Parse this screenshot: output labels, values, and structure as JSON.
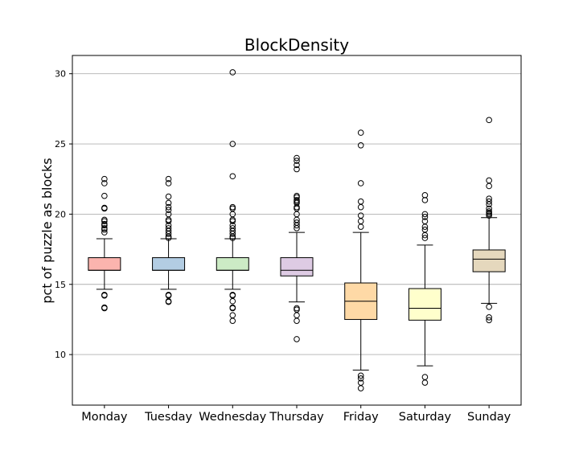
{
  "chart_data": {
    "type": "boxplot",
    "title": "BlockDensity",
    "xlabel": "",
    "ylabel": "pct of puzzle as blocks",
    "ylim": [
      6.4,
      31.3
    ],
    "yticks": [
      10,
      15,
      20,
      25,
      30
    ],
    "grid": "horizontal",
    "categories": [
      "Monday",
      "Tuesday",
      "Wednesday",
      "Thursday",
      "Friday",
      "Saturday",
      "Sunday"
    ],
    "boxes": [
      {
        "category": "Monday",
        "color": "#fbb4ae",
        "whislo": 14.65,
        "q1": 16.0,
        "median": 16.0,
        "q3": 16.9,
        "whishi": 18.25,
        "fliers": [
          13.3,
          13.35,
          14.2,
          14.25,
          18.7,
          18.9,
          19.0,
          19.2,
          19.3,
          19.5,
          19.6,
          20.4,
          20.45,
          21.3,
          22.2,
          22.5
        ]
      },
      {
        "category": "Tuesday",
        "color": "#b3cde3",
        "whislo": 14.65,
        "q1": 16.0,
        "median": 16.0,
        "q3": 16.9,
        "whishi": 18.25,
        "fliers": [
          13.75,
          13.8,
          14.2,
          14.25,
          18.3,
          18.4,
          18.6,
          18.8,
          19.0,
          19.2,
          19.5,
          19.6,
          20.0,
          20.3,
          20.5,
          20.8,
          21.25,
          22.2,
          22.5
        ]
      },
      {
        "category": "Wednesday",
        "color": "#ccebc5",
        "whislo": 14.65,
        "q1": 16.0,
        "median": 16.0,
        "q3": 16.9,
        "whishi": 18.25,
        "fliers": [
          12.4,
          12.8,
          13.3,
          13.35,
          13.8,
          14.2,
          14.25,
          18.3,
          18.4,
          18.6,
          18.8,
          19.0,
          19.2,
          19.5,
          19.6,
          20.0,
          20.4,
          20.5,
          22.7,
          25.0,
          30.1
        ]
      },
      {
        "category": "Thursday",
        "color": "#decbe4",
        "whislo": 13.75,
        "q1": 15.6,
        "median": 16.0,
        "q3": 16.9,
        "whishi": 18.7,
        "fliers": [
          11.1,
          12.4,
          12.8,
          13.2,
          13.3,
          19.0,
          19.2,
          19.4,
          19.6,
          20.0,
          20.4,
          20.5,
          20.8,
          20.9,
          21.0,
          21.2,
          21.3,
          23.2,
          23.5,
          23.8,
          24.0
        ]
      },
      {
        "category": "Friday",
        "color": "#fed9a6",
        "whislo": 8.9,
        "q1": 12.5,
        "median": 13.8,
        "q3": 15.1,
        "whishi": 18.7,
        "fliers": [
          7.6,
          8.0,
          8.3,
          8.5,
          19.1,
          19.5,
          19.9,
          20.5,
          20.9,
          22.2,
          24.9,
          25.8
        ]
      },
      {
        "category": "Saturday",
        "color": "#ffffcc",
        "whislo": 9.2,
        "q1": 12.45,
        "median": 13.3,
        "q3": 14.7,
        "whishi": 17.8,
        "fliers": [
          8.0,
          8.4,
          18.3,
          18.5,
          18.9,
          19.1,
          19.5,
          19.8,
          20.0,
          21.0,
          21.35
        ]
      },
      {
        "category": "Sunday",
        "color": "#e5d8bd",
        "whislo": 13.65,
        "q1": 15.9,
        "median": 16.8,
        "q3": 17.45,
        "whishi": 19.75,
        "fliers": [
          12.45,
          12.65,
          13.4,
          19.9,
          20.0,
          20.1,
          20.2,
          20.4,
          20.7,
          20.9,
          21.1,
          22.0,
          22.4,
          26.7
        ]
      }
    ]
  }
}
